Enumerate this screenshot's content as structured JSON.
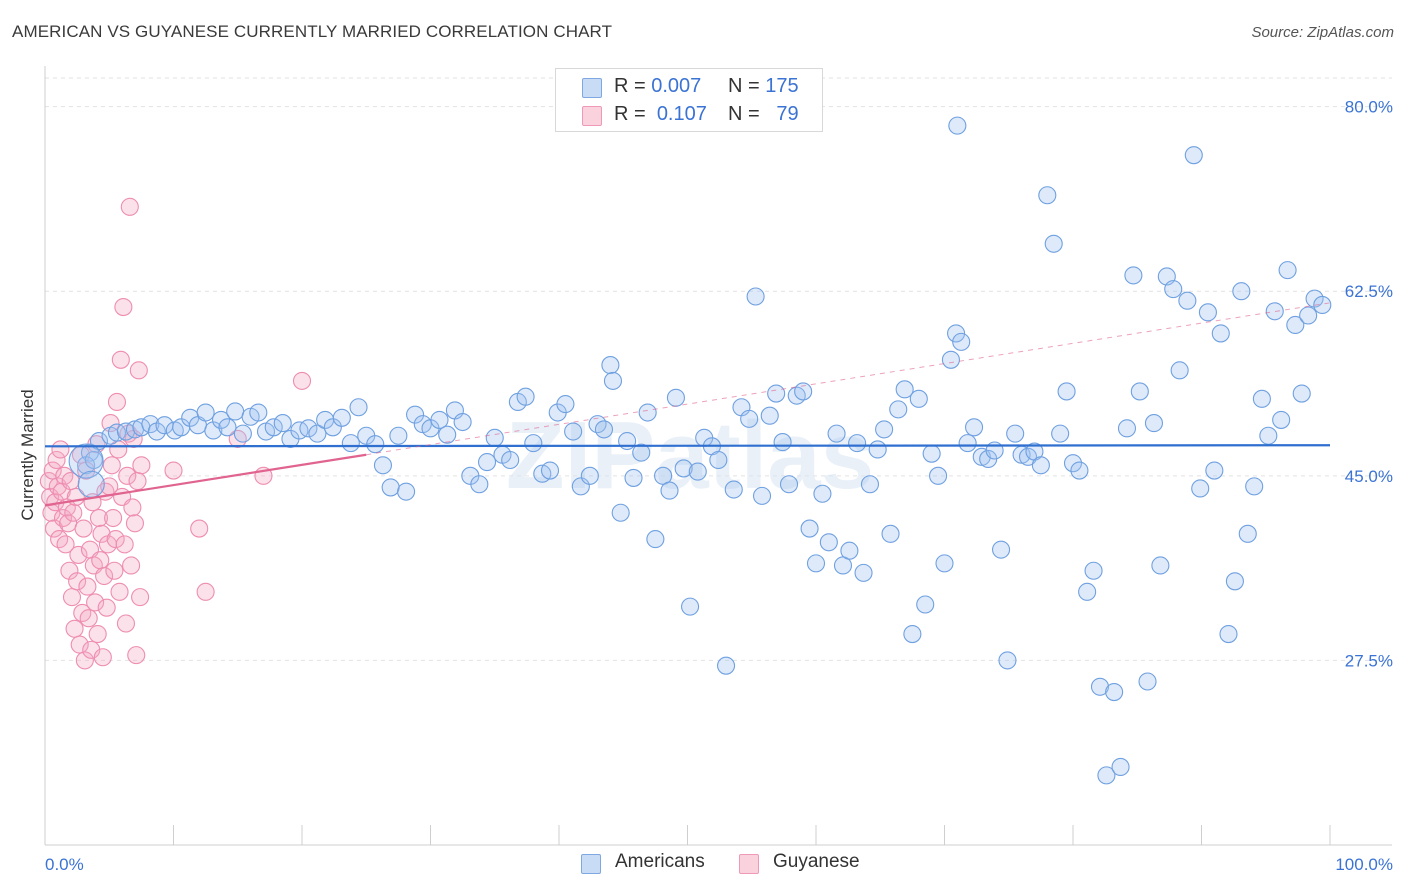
{
  "title": "AMERICAN VS GUYANESE CURRENTLY MARRIED CORRELATION CHART",
  "source": "Source: ZipAtlas.com",
  "watermark": "ZIPatlas",
  "legend": {
    "rows": [
      {
        "r_label": "R =",
        "r_value": "0.007",
        "n_label": "N =",
        "n_value": "175",
        "color": "#a8c8f0"
      },
      {
        "r_label": "R =",
        "r_value": "0.107",
        "n_label": "N =",
        "n_value": "79",
        "color": "#f4b8cc"
      }
    ]
  },
  "bottom_legend": [
    {
      "label": "Americans",
      "color": "#a8c8f0"
    },
    {
      "label": "Guyanese",
      "color": "#f4b8cc"
    }
  ],
  "chart_data": {
    "type": "scatter",
    "title": "AMERICAN VS GUYANESE CURRENTLY MARRIED CORRELATION CHART",
    "xlabel": "",
    "ylabel": "Currently Married",
    "xlim": [
      0,
      100
    ],
    "ylim": [
      10,
      83
    ],
    "x_tick_labels": [
      "0.0%",
      "100.0%"
    ],
    "y_ticks": [
      27.5,
      45.0,
      62.5,
      80.0
    ],
    "y_tick_labels": [
      "27.5%",
      "45.0%",
      "62.5%",
      "80.0%"
    ],
    "grid": true,
    "colors": {
      "americans": "#6fa0e0",
      "guyanese": "#ee8db0",
      "americans_line": "#2f6fd0",
      "guyanese_line": "#e0648f",
      "tick_text": "#3b73d4"
    },
    "series": [
      {
        "name": "Americans",
        "trend": {
          "x": [
            0,
            100
          ],
          "y": [
            47.8,
            47.9
          ]
        },
        "points": [
          [
            3.5,
            47.2
          ],
          [
            3.2,
            46.0
          ],
          [
            3.8,
            46.5
          ],
          [
            4.2,
            48.3
          ],
          [
            5.1,
            48.8
          ],
          [
            5.6,
            49.1
          ],
          [
            6.3,
            49.2
          ],
          [
            7.0,
            49.4
          ],
          [
            7.5,
            49.6
          ],
          [
            8.2,
            49.9
          ],
          [
            8.7,
            49.2
          ],
          [
            9.3,
            49.8
          ],
          [
            10.1,
            49.3
          ],
          [
            10.6,
            49.6
          ],
          [
            11.3,
            50.5
          ],
          [
            11.9,
            49.8
          ],
          [
            12.5,
            51.0
          ],
          [
            13.1,
            49.3
          ],
          [
            13.7,
            50.3
          ],
          [
            14.2,
            49.6
          ],
          [
            14.8,
            51.1
          ],
          [
            15.4,
            49.0
          ],
          [
            16.0,
            50.6
          ],
          [
            16.6,
            51.0
          ],
          [
            17.2,
            49.2
          ],
          [
            17.8,
            49.6
          ],
          [
            18.5,
            50.0
          ],
          [
            19.1,
            48.5
          ],
          [
            19.8,
            49.3
          ],
          [
            20.5,
            49.5
          ],
          [
            21.2,
            49.0
          ],
          [
            21.8,
            50.3
          ],
          [
            22.4,
            49.6
          ],
          [
            23.1,
            50.5
          ],
          [
            23.8,
            48.1
          ],
          [
            24.4,
            51.5
          ],
          [
            25.0,
            48.8
          ],
          [
            25.7,
            48.0
          ],
          [
            26.3,
            46.0
          ],
          [
            26.9,
            43.9
          ],
          [
            27.5,
            48.8
          ],
          [
            28.1,
            43.5
          ],
          [
            28.8,
            50.8
          ],
          [
            29.4,
            49.9
          ],
          [
            30.0,
            49.5
          ],
          [
            30.7,
            50.3
          ],
          [
            31.3,
            48.9
          ],
          [
            31.9,
            51.2
          ],
          [
            32.5,
            50.1
          ],
          [
            33.1,
            45.0
          ],
          [
            33.8,
            44.2
          ],
          [
            34.4,
            46.3
          ],
          [
            35.0,
            48.6
          ],
          [
            35.6,
            47.0
          ],
          [
            36.2,
            46.5
          ],
          [
            36.8,
            52.0
          ],
          [
            37.4,
            52.5
          ],
          [
            38.0,
            48.1
          ],
          [
            38.7,
            45.2
          ],
          [
            39.3,
            45.5
          ],
          [
            39.9,
            51.0
          ],
          [
            40.5,
            51.8
          ],
          [
            41.1,
            49.2
          ],
          [
            41.7,
            44.0
          ],
          [
            42.4,
            45.0
          ],
          [
            43.0,
            49.9
          ],
          [
            43.5,
            49.4
          ],
          [
            44.0,
            55.5
          ],
          [
            44.2,
            54.0
          ],
          [
            44.8,
            41.5
          ],
          [
            45.3,
            48.3
          ],
          [
            45.8,
            44.8
          ],
          [
            46.4,
            47.2
          ],
          [
            46.9,
            51.0
          ],
          [
            47.5,
            39.0
          ],
          [
            48.1,
            45.0
          ],
          [
            48.6,
            43.6
          ],
          [
            49.1,
            52.4
          ],
          [
            49.7,
            45.7
          ],
          [
            50.2,
            32.6
          ],
          [
            50.8,
            45.4
          ],
          [
            51.3,
            48.6
          ],
          [
            51.9,
            47.8
          ],
          [
            52.4,
            46.5
          ],
          [
            53.0,
            27.0
          ],
          [
            53.6,
            43.7
          ],
          [
            54.2,
            51.5
          ],
          [
            54.8,
            50.4
          ],
          [
            55.3,
            62.0
          ],
          [
            55.8,
            43.1
          ],
          [
            56.4,
            50.7
          ],
          [
            56.9,
            52.8
          ],
          [
            57.4,
            48.2
          ],
          [
            57.9,
            44.2
          ],
          [
            58.5,
            52.6
          ],
          [
            59.0,
            53.0
          ],
          [
            59.5,
            40.0
          ],
          [
            60.0,
            36.7
          ],
          [
            60.5,
            43.3
          ],
          [
            61.0,
            38.7
          ],
          [
            61.6,
            49.0
          ],
          [
            62.1,
            36.5
          ],
          [
            62.6,
            37.9
          ],
          [
            63.2,
            48.1
          ],
          [
            63.7,
            35.8
          ],
          [
            64.2,
            44.2
          ],
          [
            64.8,
            47.5
          ],
          [
            65.3,
            49.4
          ],
          [
            65.8,
            39.5
          ],
          [
            66.4,
            51.3
          ],
          [
            66.9,
            53.2
          ],
          [
            67.5,
            30.0
          ],
          [
            68.0,
            52.3
          ],
          [
            68.5,
            32.8
          ],
          [
            69.0,
            47.1
          ],
          [
            69.5,
            45.0
          ],
          [
            70.0,
            36.7
          ],
          [
            70.5,
            56.0
          ],
          [
            70.9,
            58.5
          ],
          [
            71.3,
            57.7
          ],
          [
            71.8,
            48.1
          ],
          [
            72.3,
            49.6
          ],
          [
            72.9,
            46.8
          ],
          [
            73.4,
            46.6
          ],
          [
            73.9,
            47.4
          ],
          [
            74.4,
            38.0
          ],
          [
            74.9,
            27.5
          ],
          [
            75.5,
            49.0
          ],
          [
            76.0,
            47.0
          ],
          [
            76.5,
            46.8
          ],
          [
            77.0,
            47.3
          ],
          [
            77.5,
            46.0
          ],
          [
            78.0,
            71.6
          ],
          [
            78.5,
            67.0
          ],
          [
            79.0,
            49.0
          ],
          [
            79.5,
            53.0
          ],
          [
            80.0,
            46.2
          ],
          [
            80.5,
            45.5
          ],
          [
            81.1,
            34.0
          ],
          [
            81.6,
            36.0
          ],
          [
            82.1,
            25.0
          ],
          [
            82.6,
            16.6
          ],
          [
            83.2,
            24.5
          ],
          [
            83.7,
            17.4
          ],
          [
            84.2,
            49.5
          ],
          [
            84.7,
            64.0
          ],
          [
            85.2,
            53.0
          ],
          [
            85.8,
            25.5
          ],
          [
            86.3,
            50.0
          ],
          [
            86.8,
            36.5
          ],
          [
            87.3,
            63.9
          ],
          [
            87.8,
            62.7
          ],
          [
            88.3,
            55.0
          ],
          [
            88.9,
            61.6
          ],
          [
            89.4,
            75.4
          ],
          [
            89.9,
            43.8
          ],
          [
            90.5,
            60.5
          ],
          [
            91.0,
            45.5
          ],
          [
            91.5,
            58.5
          ],
          [
            92.1,
            30.0
          ],
          [
            92.6,
            35.0
          ],
          [
            93.1,
            62.5
          ],
          [
            93.6,
            39.5
          ],
          [
            94.1,
            44.0
          ],
          [
            94.7,
            52.3
          ],
          [
            95.2,
            48.8
          ],
          [
            95.7,
            60.6
          ],
          [
            96.2,
            50.3
          ],
          [
            96.7,
            64.5
          ],
          [
            97.3,
            59.3
          ],
          [
            97.8,
            52.8
          ],
          [
            98.3,
            60.2
          ],
          [
            98.8,
            61.8
          ],
          [
            99.4,
            61.2
          ],
          [
            71.0,
            78.2
          ]
        ]
      },
      {
        "name": "Guyanese",
        "trend": {
          "x": [
            0,
            25
          ],
          "y": [
            42.2,
            47.0
          ]
        },
        "points": [
          [
            0.3,
            44.5
          ],
          [
            0.4,
            43.0
          ],
          [
            0.5,
            41.5
          ],
          [
            0.6,
            45.5
          ],
          [
            0.7,
            40.0
          ],
          [
            0.8,
            42.5
          ],
          [
            0.9,
            46.5
          ],
          [
            1.0,
            44.0
          ],
          [
            1.1,
            39.0
          ],
          [
            1.2,
            47.5
          ],
          [
            1.3,
            43.5
          ],
          [
            1.4,
            41.0
          ],
          [
            1.5,
            45.0
          ],
          [
            1.6,
            38.5
          ],
          [
            1.7,
            42.0
          ],
          [
            1.8,
            40.5
          ],
          [
            1.9,
            36.0
          ],
          [
            2.0,
            44.5
          ],
          [
            2.1,
            33.5
          ],
          [
            2.2,
            41.5
          ],
          [
            2.3,
            30.5
          ],
          [
            2.4,
            43.0
          ],
          [
            2.5,
            35.0
          ],
          [
            2.6,
            37.5
          ],
          [
            2.7,
            29.0
          ],
          [
            2.8,
            47.0
          ],
          [
            2.9,
            32.0
          ],
          [
            3.0,
            40.0
          ],
          [
            3.1,
            27.5
          ],
          [
            3.2,
            45.5
          ],
          [
            3.3,
            34.5
          ],
          [
            3.4,
            31.5
          ],
          [
            3.5,
            38.0
          ],
          [
            3.6,
            28.5
          ],
          [
            3.7,
            42.5
          ],
          [
            3.8,
            36.5
          ],
          [
            3.9,
            33.0
          ],
          [
            4.0,
            48.0
          ],
          [
            4.1,
            30.0
          ],
          [
            4.2,
            41.0
          ],
          [
            4.3,
            37.0
          ],
          [
            4.4,
            39.5
          ],
          [
            4.5,
            27.8
          ],
          [
            4.6,
            35.5
          ],
          [
            4.7,
            43.5
          ],
          [
            4.8,
            32.5
          ],
          [
            4.9,
            38.5
          ],
          [
            5.0,
            44.0
          ],
          [
            5.1,
            50.0
          ],
          [
            5.2,
            46.0
          ],
          [
            5.3,
            41.0
          ],
          [
            5.4,
            36.0
          ],
          [
            5.5,
            39.0
          ],
          [
            5.6,
            52.0
          ],
          [
            5.7,
            47.5
          ],
          [
            5.8,
            34.0
          ],
          [
            5.9,
            56.0
          ],
          [
            6.0,
            43.0
          ],
          [
            6.1,
            61.0
          ],
          [
            6.2,
            38.5
          ],
          [
            6.3,
            31.0
          ],
          [
            6.4,
            45.0
          ],
          [
            6.5,
            49.0
          ],
          [
            6.6,
            70.5
          ],
          [
            6.7,
            36.5
          ],
          [
            6.8,
            42.0
          ],
          [
            6.9,
            48.5
          ],
          [
            7.0,
            40.5
          ],
          [
            7.1,
            28.0
          ],
          [
            7.2,
            44.5
          ],
          [
            7.3,
            55.0
          ],
          [
            7.4,
            33.5
          ],
          [
            7.5,
            46.0
          ],
          [
            10.0,
            45.5
          ],
          [
            12.0,
            40.0
          ],
          [
            12.5,
            34.0
          ],
          [
            15.0,
            48.5
          ],
          [
            17.0,
            45.0
          ],
          [
            20.0,
            54.0
          ]
        ]
      }
    ]
  }
}
